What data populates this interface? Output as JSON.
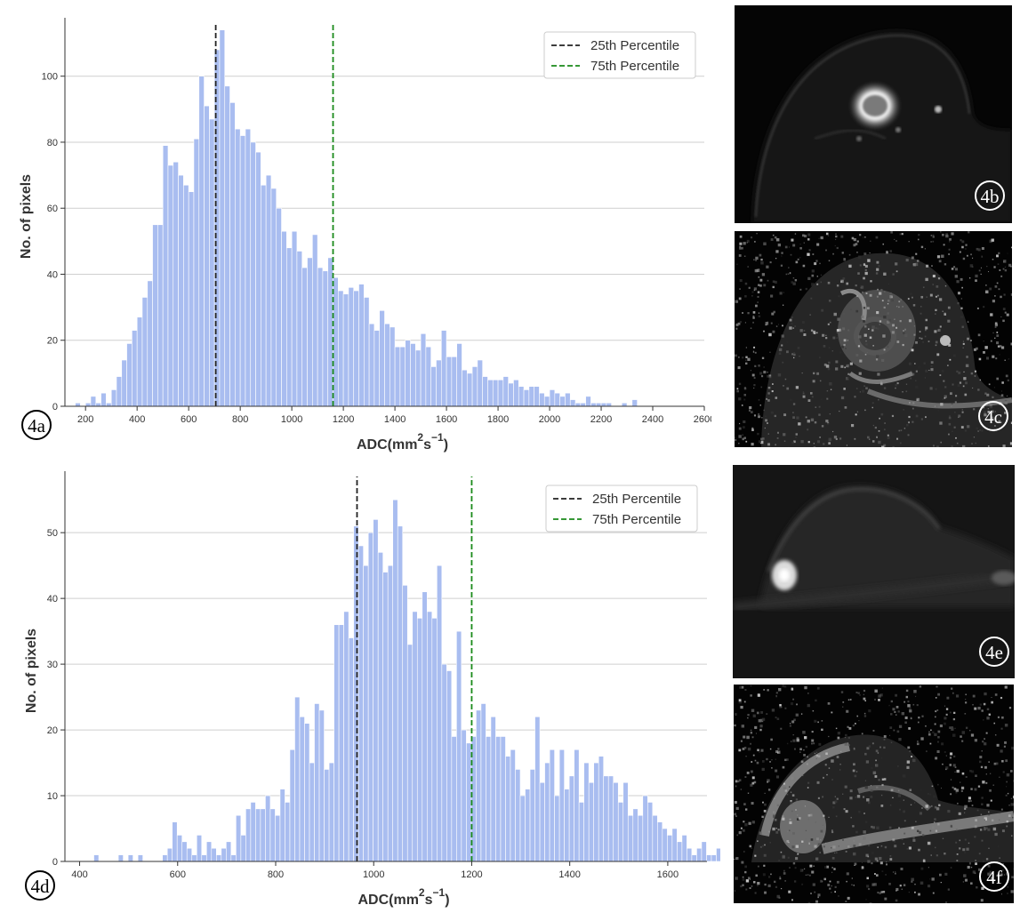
{
  "chart_data": [
    {
      "id": "4a",
      "type": "bar",
      "panel_label": "4a",
      "xlabel": "ADC(mm",
      "xlabel_sup1": "2",
      "xlabel_mid": "s",
      "xlabel_sup2": "−1",
      "xlabel_end": ")",
      "ylabel": "No. of pixels",
      "xlim": [
        120,
        2600
      ],
      "ylim": [
        0,
        115
      ],
      "xticks": [
        200,
        400,
        600,
        800,
        1000,
        1200,
        1400,
        1600,
        1800,
        2000,
        2200,
        2400,
        2600
      ],
      "yticks": [
        0,
        20,
        40,
        60,
        80,
        100
      ],
      "bin_start": 170,
      "bin_width": 20,
      "bar_color": "#a9bdf0",
      "grid": "horizontal",
      "legend_position": "top-right",
      "legend": [
        {
          "label": "25th Percentile",
          "color": "#222222",
          "x": 705
        },
        {
          "label": "75th Percentile",
          "color": "#1a8a1a",
          "x": 1160
        }
      ],
      "values": [
        1,
        0,
        1,
        3,
        1,
        4,
        1,
        5,
        9,
        14,
        19,
        23,
        27,
        33,
        38,
        55,
        55,
        79,
        73,
        74,
        70,
        67,
        65,
        81,
        100,
        91,
        87,
        108,
        114,
        97,
        92,
        84,
        82,
        84,
        80,
        77,
        67,
        70,
        66,
        60,
        53,
        48,
        53,
        47,
        42,
        45,
        52,
        42,
        41,
        45,
        39,
        35,
        34,
        36,
        35,
        37,
        33,
        25,
        23,
        29,
        25,
        24,
        18,
        18,
        20,
        19,
        17,
        22,
        18,
        12,
        14,
        23,
        15,
        15,
        19,
        11,
        10,
        12,
        14,
        9,
        8,
        8,
        8,
        9,
        7,
        8,
        6,
        5,
        6,
        6,
        4,
        3,
        5,
        4,
        3,
        4,
        2,
        1,
        1,
        3,
        1,
        1,
        1,
        1,
        0,
        0,
        1,
        0,
        2
      ]
    },
    {
      "id": "4d",
      "type": "bar",
      "panel_label": "4d",
      "xlabel": "ADC(mm",
      "xlabel_sup1": "2",
      "xlabel_mid": "s",
      "xlabel_sup2": "−1",
      "xlabel_end": ")",
      "ylabel": "No. of pixels",
      "xlim": [
        370,
        1680
      ],
      "ylim": [
        0,
        58
      ],
      "xticks": [
        400,
        600,
        800,
        1000,
        1200,
        1400,
        1600
      ],
      "yticks": [
        0,
        10,
        20,
        30,
        40,
        50
      ],
      "bin_start": 434,
      "bin_width": 10,
      "bar_color": "#a9bdf0",
      "grid": "horizontal",
      "legend_position": "top-right",
      "legend": [
        {
          "label": "25th Percentile",
          "color": "#222222",
          "x": 966
        },
        {
          "label": "75th Percentile",
          "color": "#1a8a1a",
          "x": 1200
        }
      ],
      "values": [
        1,
        0,
        0,
        0,
        0,
        1,
        0,
        1,
        0,
        1,
        0,
        0,
        0,
        0,
        1,
        2,
        6,
        4,
        3,
        2,
        1,
        4,
        1,
        3,
        2,
        1,
        2,
        3,
        1,
        7,
        4,
        8,
        9,
        8,
        8,
        10,
        8,
        7,
        11,
        9,
        17,
        25,
        22,
        21,
        15,
        24,
        23,
        14,
        15,
        36,
        36,
        38,
        34,
        51,
        48,
        45,
        50,
        52,
        47,
        44,
        45,
        55,
        51,
        42,
        33,
        38,
        37,
        41,
        38,
        37,
        45,
        30,
        29,
        19,
        35,
        20,
        18,
        19,
        23,
        24,
        19,
        22,
        19,
        19,
        16,
        17,
        14,
        10,
        11,
        14,
        22,
        12,
        15,
        17,
        10,
        17,
        11,
        13,
        17,
        9,
        15,
        12,
        15,
        16,
        13,
        13,
        12,
        9,
        12,
        7,
        8,
        7,
        10,
        9,
        7,
        6,
        5,
        4,
        5,
        3,
        4,
        2,
        1,
        2,
        3,
        1,
        1,
        2,
        0,
        2,
        1,
        3,
        2
      ]
    }
  ],
  "images": [
    {
      "label": "4b",
      "kind": "dwi-bright-lesion"
    },
    {
      "label": "4c",
      "kind": "adc-map-dark-lesion"
    },
    {
      "label": "4e",
      "kind": "dwi-small-lesion"
    },
    {
      "label": "4f",
      "kind": "adc-map-noisy"
    }
  ]
}
